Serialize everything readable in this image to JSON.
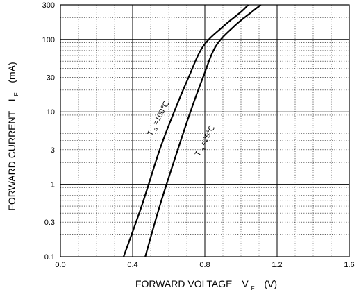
{
  "chart_data": {
    "type": "line",
    "title": "",
    "xlabel": {
      "text": "FORWARD VOLTAGE",
      "symbol": "V",
      "subscript": "F",
      "unit": "(V)"
    },
    "ylabel": {
      "text": "FORWARD CURRENT",
      "symbol": "I",
      "subscript": "F",
      "unit": "(mA)"
    },
    "xlim": [
      0,
      1.6
    ],
    "ylim": [
      0.1,
      300
    ],
    "yscale": "log",
    "grid": true,
    "x_ticks": [
      {
        "value": 0.0,
        "label": "0.0"
      },
      {
        "value": 0.4,
        "label": "0.4"
      },
      {
        "value": 0.8,
        "label": "0.8"
      },
      {
        "value": 1.2,
        "label": "1.2"
      },
      {
        "value": 1.6,
        "label": "1.6"
      }
    ],
    "y_ticks": [
      {
        "value": 0.1,
        "label": "0.1"
      },
      {
        "value": 0.3,
        "label": "0.3"
      },
      {
        "value": 1,
        "label": "1"
      },
      {
        "value": 3,
        "label": "3"
      },
      {
        "value": 10,
        "label": "10"
      },
      {
        "value": 30,
        "label": "30"
      },
      {
        "value": 100,
        "label": "100"
      },
      {
        "value": 300,
        "label": "300"
      }
    ],
    "series": [
      {
        "name": "Ta=100°C",
        "label_parts": {
          "symbol": "T",
          "subscript": "a",
          "rest": "=100℃"
        },
        "points": [
          [
            0.35,
            0.1
          ],
          [
            0.45,
            0.5
          ],
          [
            0.55,
            3
          ],
          [
            0.63,
            10
          ],
          [
            0.71,
            30
          ],
          [
            0.79,
            80
          ],
          [
            0.9,
            150
          ],
          [
            1.0,
            240
          ],
          [
            1.04,
            300
          ]
        ]
      },
      {
        "name": "Ta=25°C",
        "label_parts": {
          "symbol": "T",
          "subscript": "a",
          "rest": "=25℃"
        },
        "points": [
          [
            0.47,
            0.1
          ],
          [
            0.55,
            0.5
          ],
          [
            0.65,
            3
          ],
          [
            0.72,
            10
          ],
          [
            0.79,
            30
          ],
          [
            0.86,
            80
          ],
          [
            0.96,
            150
          ],
          [
            1.06,
            240
          ],
          [
            1.11,
            300
          ]
        ]
      }
    ]
  }
}
